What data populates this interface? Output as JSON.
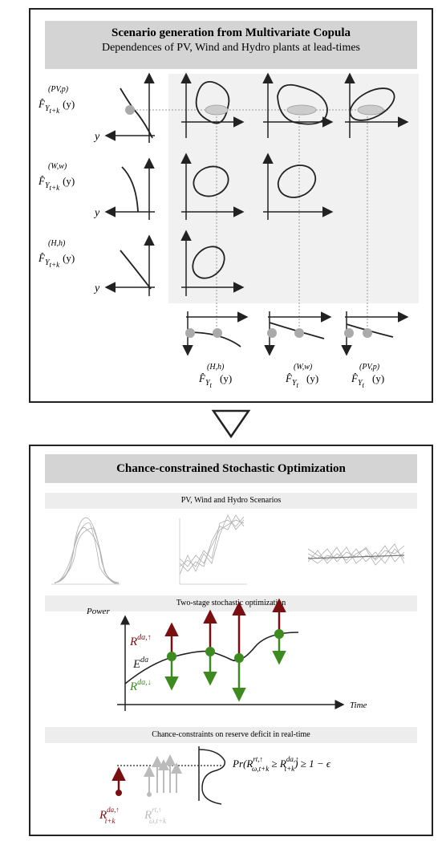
{
  "top": {
    "title": "Scenario generation from Multivariate Copula",
    "subtitle": "Dependences of PV, Wind and Hydro plants at lead-times",
    "rows": [
      {
        "sup": "(PV,p)",
        "sub": "t+k",
        "arg": "(y)"
      },
      {
        "sup": "(W,w)",
        "sub": "t+k",
        "arg": "(y)"
      },
      {
        "sup": "(H,h)",
        "sub": "t+k",
        "arg": "(y)"
      }
    ],
    "y_axis_label": "y",
    "bottom_labels": [
      {
        "sup": "(H,h)",
        "sub": "t",
        "arg": "(y)"
      },
      {
        "sup": "(W,w)",
        "sub": "t",
        "arg": "(y)"
      },
      {
        "sup": "(PV,p)",
        "sub": "t",
        "arg": "(y)"
      }
    ]
  },
  "bottom": {
    "title": "Chance-constrained Stochastic Optimization",
    "scenarios_label": "PV, Wind and Hydro Scenarios",
    "two_stage_label": "Two-stage stochastic optimization",
    "power_label": "Power",
    "time_label": "Time",
    "r_up": "R",
    "r_up_sup": "da,↑",
    "e_da": "E",
    "e_da_sup": "da",
    "r_down": "R",
    "r_down_sup": "da,↓",
    "chance_label": "Chance-constraints on reserve deficit in real-time",
    "formula": "Pr(R",
    "formula_sup1": "rt,↑",
    "formula_sub1": "ω,t+k",
    "formula_mid": " ≥ R",
    "formula_sup2": "da,↑",
    "formula_sub2": "t+k",
    "formula_end": ") ≥ 1 − ϵ",
    "r_da_label": "R",
    "r_da_sup": "da,↑",
    "r_da_sub": "t+k",
    "r_rt_label": "R",
    "r_rt_sup": "rt,↑",
    "r_rt_sub": "ω,t+k"
  },
  "colors": {
    "dark_red": "#7a0f12",
    "green": "#3d8a1e",
    "grey_dot": "#aaaaaa"
  }
}
